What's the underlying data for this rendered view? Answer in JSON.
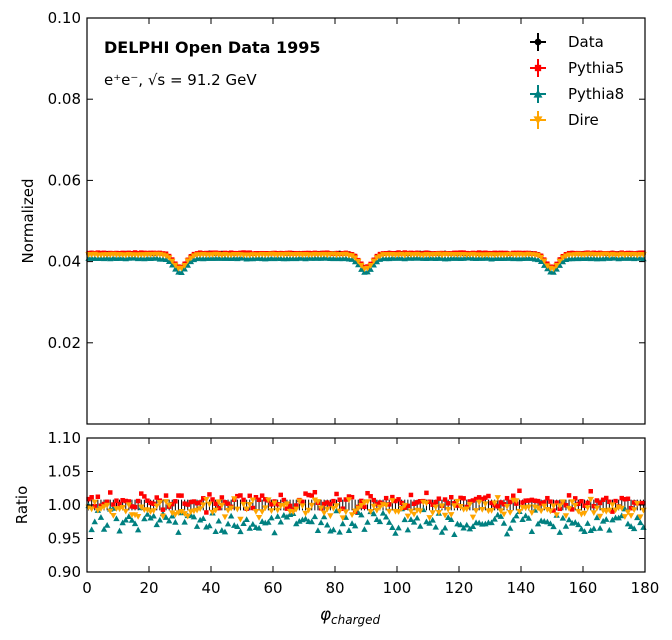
{
  "chart_data": {
    "type": "scatter",
    "title": "DELPHI Open Data 1995",
    "subtitle": "e⁺e⁻, √s = 91.2 GeV",
    "xlabel": "φcharged",
    "xlabel_base": "φ",
    "xlabel_sub": "charged",
    "xlim": [
      0,
      180
    ],
    "xticks": [
      0,
      20,
      40,
      60,
      80,
      100,
      120,
      140,
      160,
      180
    ],
    "xtick_labels": [
      "0",
      "20",
      "40",
      "60",
      "80",
      "100",
      "120",
      "140",
      "160",
      "180"
    ],
    "main_panel": {
      "ylabel": "Normalized",
      "ylim": [
        0,
        0.1
      ],
      "yticks": [
        0.02,
        0.04,
        0.06,
        0.08,
        0.1
      ],
      "ytick_labels": [
        "0.02",
        "0.04",
        "0.06",
        "0.08",
        "0.10"
      ],
      "bins": 180,
      "dip_centers": [
        30,
        90,
        150
      ],
      "baseline": {
        "Data": 0.042,
        "Pythia5": 0.0421,
        "Pythia8": 0.0408,
        "Dire": 0.0417
      },
      "dip_depth": 0.0035
    },
    "ratio_panel": {
      "ylabel": "Ratio",
      "ylim": [
        0.9,
        1.1
      ],
      "yticks": [
        0.9,
        0.95,
        1.0,
        1.05,
        1.1
      ],
      "ytick_labels": [
        "0.90",
        "0.95",
        "1.00",
        "1.05",
        "1.10"
      ],
      "ratio_center": {
        "Data": 1.0,
        "Pythia5": 1.005,
        "Pythia8": 0.975,
        "Dire": 0.995
      },
      "ratio_spread": {
        "Data": 0.004,
        "Pythia5": 0.012,
        "Pythia8": 0.018,
        "Dire": 0.012
      }
    },
    "series": [
      {
        "name": "Data",
        "color": "#000000",
        "marker": "circle"
      },
      {
        "name": "Pythia5",
        "color": "#ff0000",
        "marker": "square"
      },
      {
        "name": "Pythia8",
        "color": "#008080",
        "marker": "triangle-up"
      },
      {
        "name": "Dire",
        "color": "#ffa500",
        "marker": "triangle-down"
      }
    ],
    "legend_position": "top-right"
  }
}
